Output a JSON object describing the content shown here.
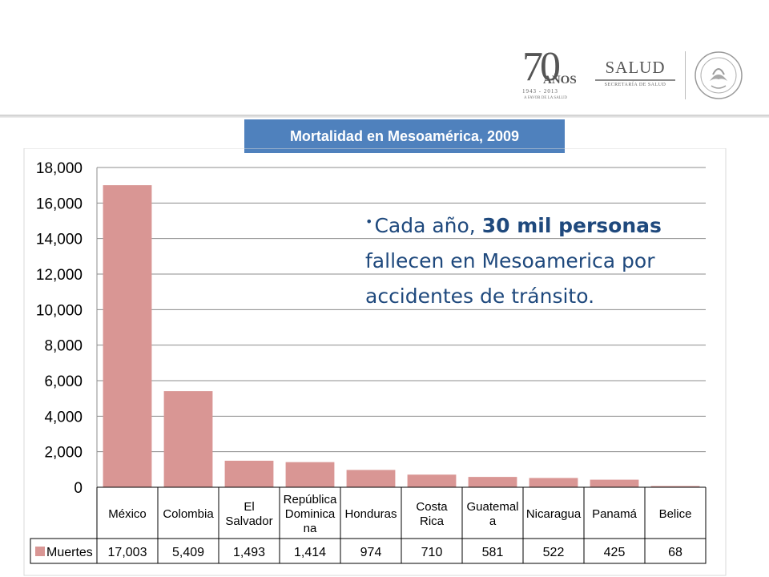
{
  "header": {
    "logo_70": {
      "number": "70",
      "anos": "AÑOS",
      "years": "1943 - 2013",
      "tagline": "A FAVOR DE LA SALUD"
    },
    "salud": {
      "word": "SALUD",
      "subtitle": "SECRETARÍA DE SALUD"
    },
    "seal_icon": "estados-unidos-mexicanos-seal-icon"
  },
  "callout": {
    "part1": "Cada año, ",
    "part2_bold": "30 mil personas",
    "part3": " fallecen en Mesoamerica por accidentes de tránsito."
  },
  "colors": {
    "bar": "#d99694",
    "title_bg": "#4f81bd",
    "callout_text": "#1f497d"
  },
  "chart_data": {
    "type": "bar",
    "title": "Mortalidad en Mesoamérica, 2009",
    "categories": [
      [
        "México"
      ],
      [
        "Colombia"
      ],
      [
        "El",
        "Salvador"
      ],
      [
        "República",
        "Dominica",
        "na"
      ],
      [
        "Honduras"
      ],
      [
        "Costa",
        "Rica"
      ],
      [
        "Guatemal",
        "a"
      ],
      [
        "Nicaragua"
      ],
      [
        "Panamá"
      ],
      [
        "Belice"
      ]
    ],
    "series": [
      {
        "name": "Muertes",
        "values": [
          17003,
          5409,
          1493,
          1414,
          974,
          710,
          581,
          522,
          425,
          68
        ]
      }
    ],
    "value_labels": [
      "17,003",
      "5,409",
      "1,493",
      "1,414",
      "974",
      "710",
      "581",
      "522",
      "425",
      "68"
    ],
    "yticks": [
      "0",
      "2,000",
      "4,000",
      "6,000",
      "8,000",
      "10,000",
      "12,000",
      "14,000",
      "16,000",
      "18,000"
    ],
    "ylim": [
      0,
      18000
    ],
    "grid": true,
    "legend": "data-table"
  }
}
